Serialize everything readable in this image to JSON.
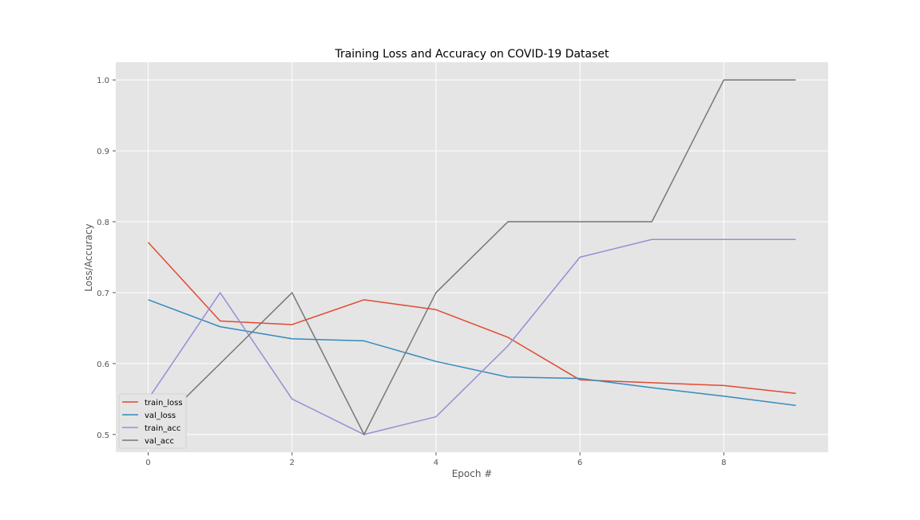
{
  "chart_data": {
    "type": "line",
    "title": "Training Loss and Accuracy on COVID-19 Dataset",
    "xlabel": "Epoch #",
    "ylabel": "Loss/Accuracy",
    "x": [
      0,
      1,
      2,
      3,
      4,
      5,
      6,
      7,
      8,
      9
    ],
    "xlim": [
      -0.45,
      9.45
    ],
    "ylim": [
      0.475,
      1.025
    ],
    "xticks": [
      0,
      2,
      4,
      6,
      8
    ],
    "xtick_labels": [
      "0",
      "2",
      "4",
      "6",
      "8"
    ],
    "yticks": [
      0.5,
      0.6,
      0.7,
      0.8,
      0.9,
      1.0
    ],
    "ytick_labels": [
      "0.5",
      "0.6",
      "0.7",
      "0.8",
      "0.9",
      "1.0"
    ],
    "grid": true,
    "style": "ggplot",
    "legend_position": "lower-left",
    "series": [
      {
        "name": "train_loss",
        "color": "#E24A33",
        "values": [
          0.771,
          0.66,
          0.655,
          0.69,
          0.676,
          0.637,
          0.577,
          0.573,
          0.569,
          0.558
        ]
      },
      {
        "name": "val_loss",
        "color": "#348ABD",
        "values": [
          0.69,
          0.652,
          0.635,
          0.632,
          0.603,
          0.581,
          0.579,
          0.566,
          0.554,
          0.541
        ]
      },
      {
        "name": "train_acc",
        "color": "#988ED5",
        "values": [
          0.55,
          0.7,
          0.55,
          0.5,
          0.525,
          0.625,
          0.75,
          0.775,
          0.775,
          0.775
        ]
      },
      {
        "name": "val_acc",
        "color": "#777777",
        "values": [
          0.5,
          0.6,
          0.7,
          0.5,
          0.7,
          0.8,
          0.8,
          0.8,
          1.0,
          1.0
        ]
      }
    ]
  }
}
